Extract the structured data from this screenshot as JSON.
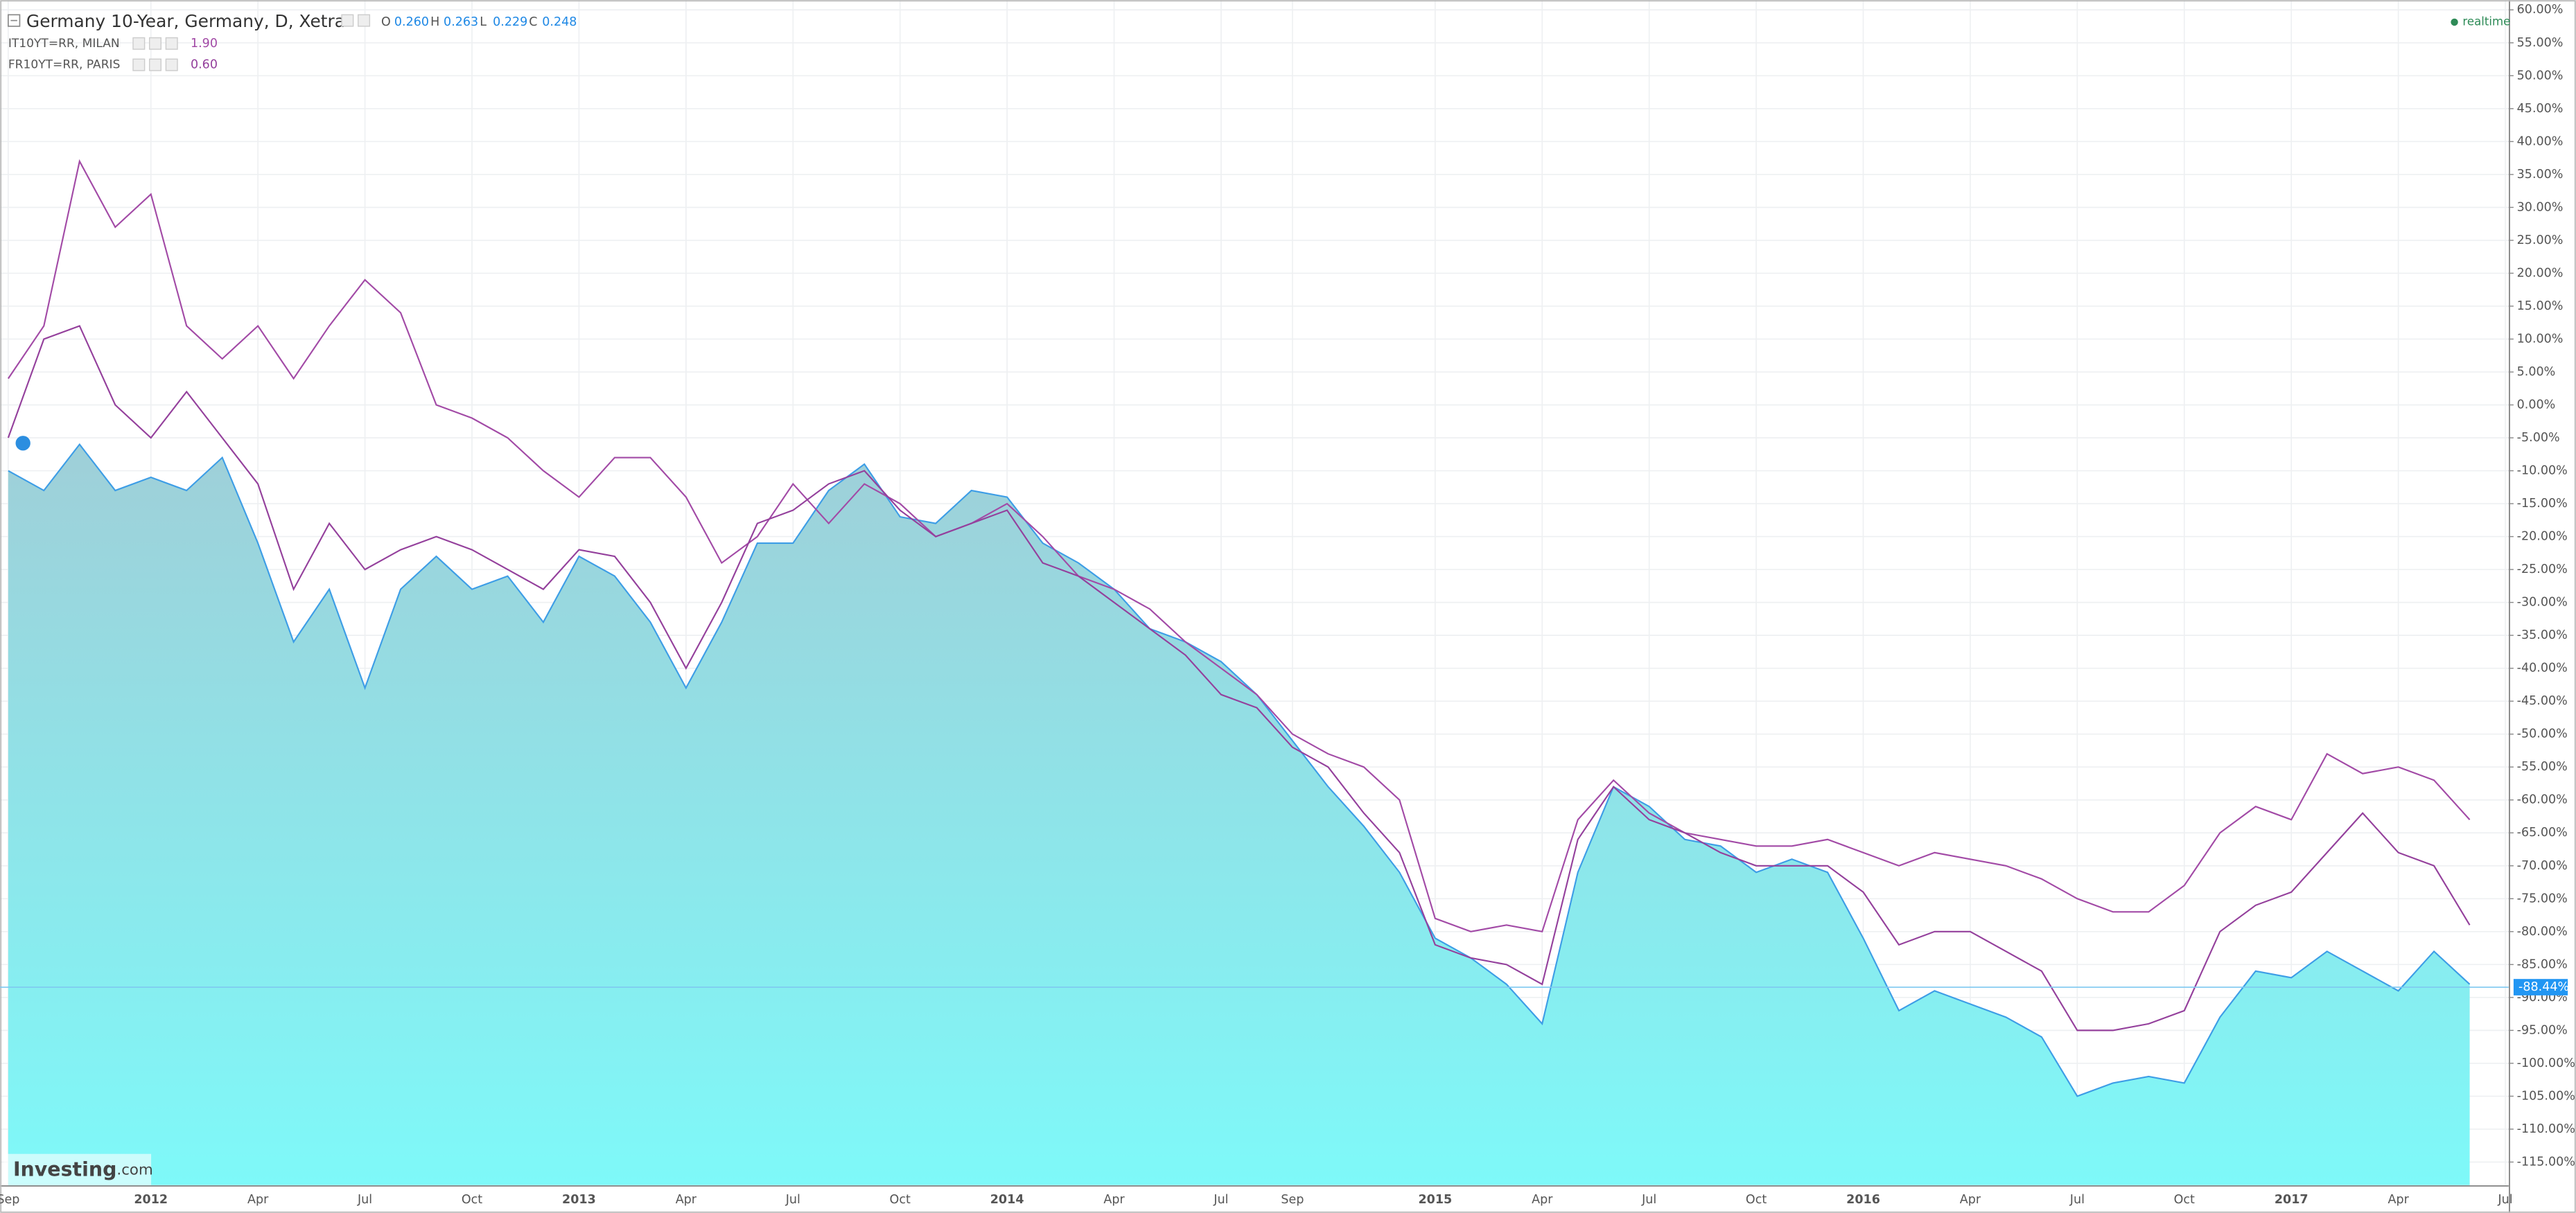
{
  "chart_data": {
    "type": "area",
    "title": "Germany 10-Year, Germany, D, Xetra",
    "ohlc": {
      "labels": [
        "O",
        "H",
        "L",
        "C"
      ],
      "values": [
        "0.260",
        "0.263",
        "0.229",
        "0.248"
      ]
    },
    "realtime": "realtime",
    "brand": [
      "Investing",
      ".com"
    ],
    "current": {
      "value": -88.44,
      "label": "-88.44%"
    },
    "categories": [
      "Sep",
      null,
      null,
      null,
      "2012",
      null,
      null,
      "Apr",
      null,
      null,
      "Jul",
      null,
      null,
      "Oct",
      null,
      null,
      "2013",
      null,
      null,
      "Apr",
      null,
      null,
      "Jul",
      null,
      null,
      "Oct",
      null,
      null,
      "2014",
      null,
      null,
      "Apr",
      null,
      null,
      "Jul",
      null,
      "Sep",
      null,
      null,
      null,
      "2015",
      null,
      null,
      "Apr",
      null,
      null,
      "Jul",
      null,
      null,
      "Oct",
      null,
      null,
      "2016",
      null,
      null,
      "Apr",
      null,
      null,
      "Jul",
      null,
      null,
      "Oct",
      null,
      null,
      "2017",
      null,
      null,
      "Apr",
      null,
      null,
      "Jul"
    ],
    "series": [
      {
        "color": "#3d9de6",
        "fill": [
          "#9fcfd8",
          "#7ef9f9"
        ],
        "values": [
          -10,
          -13,
          -6,
          -13,
          -11,
          -13,
          -8,
          -21,
          -36,
          -28,
          -43,
          -28,
          -23,
          -28,
          -26,
          -33,
          -23,
          -26,
          -33,
          -43,
          -33,
          -21,
          -21,
          -13,
          -9,
          -17,
          -18,
          -13,
          -14,
          -21,
          -24,
          -28,
          -34,
          -36,
          -39,
          -44,
          -51,
          -58,
          -64,
          -71,
          -81,
          -84,
          -88,
          -94,
          -71,
          -58,
          -61,
          -66,
          -67,
          -71,
          -69,
          -71,
          -81,
          -92,
          -89,
          -91,
          -93,
          -96,
          -105,
          -103,
          -102,
          -103,
          -93,
          -86,
          -87,
          -83,
          -86,
          -89,
          -83,
          -88,
          null
        ]
      },
      {
        "name": "IT10YT=RR, MILAN",
        "last": "1.90",
        "color": "#a24aa6",
        "values": [
          4,
          12,
          37,
          27,
          32,
          12,
          7,
          12,
          4,
          12,
          19,
          14,
          0,
          -2,
          -5,
          -10,
          -14,
          -8,
          -8,
          -14,
          -24,
          -20,
          -12,
          -18,
          -12,
          -15,
          -20,
          -18,
          -15,
          -20,
          -26,
          -28,
          -31,
          -36,
          -40,
          -44,
          -50,
          -53,
          -55,
          -60,
          -78,
          -80,
          -79,
          -80,
          -63,
          -57,
          -62,
          -65,
          -66,
          -67,
          -67,
          -66,
          -68,
          -70,
          -68,
          -69,
          -70,
          -72,
          -75,
          -77,
          -77,
          -73,
          -65,
          -61,
          -63,
          -53,
          -56,
          -55,
          -57,
          -63,
          null
        ]
      },
      {
        "name": "FR10YT=RR, PARIS",
        "last": "0.60",
        "color": "#94409c",
        "values": [
          -5,
          10,
          12,
          0,
          -5,
          2,
          -5,
          -12,
          -28,
          -18,
          -25,
          -22,
          -20,
          -22,
          -25,
          -28,
          -22,
          -23,
          -30,
          -40,
          -30,
          -18,
          -16,
          -12,
          -10,
          -16,
          -20,
          -18,
          -16,
          -24,
          -26,
          -30,
          -34,
          -38,
          -44,
          -46,
          -52,
          -55,
          -62,
          -68,
          -82,
          -84,
          -85,
          -88,
          -66,
          -58,
          -63,
          -65,
          -68,
          -70,
          -70,
          -70,
          -74,
          -82,
          -80,
          -80,
          -83,
          -86,
          -95,
          -95,
          -94,
          -92,
          -80,
          -76,
          -74,
          -68,
          -62,
          -68,
          -70,
          -79,
          null
        ]
      }
    ],
    "ylim": [
      -118.5,
      61.5
    ],
    "yticks": [
      {
        "value": 60,
        "label": "60.00%"
      },
      {
        "value": 55,
        "label": "55.00%"
      },
      {
        "value": 50,
        "label": "50.00%"
      },
      {
        "value": 45,
        "label": "45.00%"
      },
      {
        "value": 40,
        "label": "40.00%"
      },
      {
        "value": 35,
        "label": "35.00%"
      },
      {
        "value": 30,
        "label": "30.00%"
      },
      {
        "value": 25,
        "label": "25.00%"
      },
      {
        "value": 20,
        "label": "20.00%"
      },
      {
        "value": 15,
        "label": "15.00%"
      },
      {
        "value": 10,
        "label": "10.00%"
      },
      {
        "value": 5,
        "label": "5.00%"
      },
      {
        "value": 0,
        "label": "0.00%"
      },
      {
        "value": -5,
        "label": "-5.00%"
      },
      {
        "value": -10,
        "label": "-10.00%"
      },
      {
        "value": -15,
        "label": "-15.00%"
      },
      {
        "value": -20,
        "label": "-20.00%"
      },
      {
        "value": -25,
        "label": "-25.00%"
      },
      {
        "value": -30,
        "label": "-30.00%"
      },
      {
        "value": -35,
        "label": "-35.00%"
      },
      {
        "value": -40,
        "label": "-40.00%"
      },
      {
        "value": -45,
        "label": "-45.00%"
      },
      {
        "value": -50,
        "label": "-50.00%"
      },
      {
        "value": -55,
        "label": "-55.00%"
      },
      {
        "value": -60,
        "label": "-60.00%"
      },
      {
        "value": -65,
        "label": "-65.00%"
      },
      {
        "value": -70,
        "label": "-70.00%"
      },
      {
        "value": -75,
        "label": "-75.00%"
      },
      {
        "value": -80,
        "label": "-80.00%"
      },
      {
        "value": -85,
        "label": "-85.00%"
      },
      {
        "value": -90,
        "label": "-90.00%"
      },
      {
        "value": -95,
        "label": "-95.00%"
      },
      {
        "value": -100,
        "label": "-100.00%"
      },
      {
        "value": -105,
        "label": "-105.00%"
      },
      {
        "value": -110,
        "label": "-110.00%"
      },
      {
        "value": -115,
        "label": "-115.00%"
      }
    ],
    "grid": true
  }
}
